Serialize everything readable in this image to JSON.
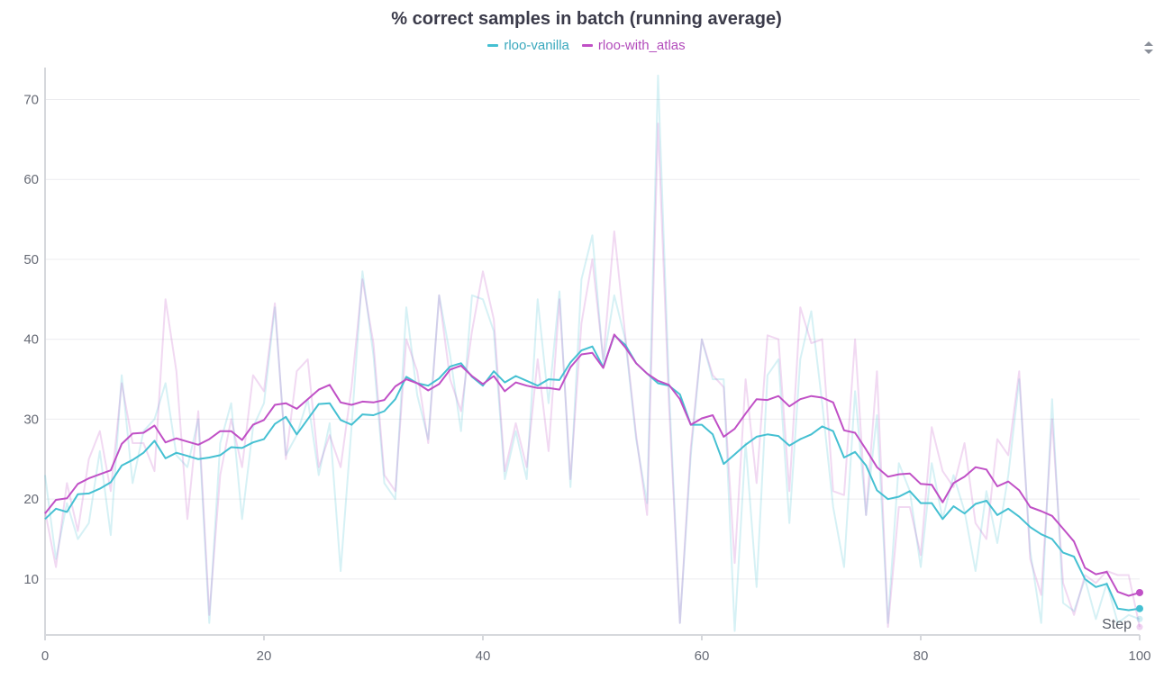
{
  "chart_data": {
    "type": "line",
    "title": "% correct samples in batch (running average)",
    "xlabel": "Step",
    "ylabel": "",
    "xlim": [
      0,
      100
    ],
    "ylim": [
      3,
      74
    ],
    "xticks": [
      0,
      20,
      40,
      60,
      80,
      100
    ],
    "yticks": [
      10,
      20,
      30,
      40,
      50,
      60,
      70
    ],
    "grid": true,
    "legend_position": "top-center",
    "series": [
      {
        "name": "rloo-vanilla",
        "color": "#45c0d2",
        "smoothed": [
          17.5,
          18.8,
          18.4,
          20.6,
          20.7,
          21.3,
          22.1,
          24.2,
          24.9,
          25.8,
          27.3,
          25.1,
          25.8,
          25.4,
          25.0,
          25.2,
          25.5,
          26.5,
          26.4,
          27.1,
          27.5,
          29.4,
          30.3,
          28.1,
          30.0,
          31.9,
          32.0,
          29.9,
          29.3,
          30.6,
          30.5,
          31.0,
          32.5,
          35.3,
          34.5,
          34.2,
          35.1,
          36.6,
          37.0,
          35.3,
          34.2,
          36.0,
          34.6,
          35.4,
          34.8,
          34.2,
          35.0,
          34.9,
          37.1,
          38.6,
          39.1,
          36.5,
          40.5,
          39.3,
          37.0,
          35.7,
          34.5,
          34.2,
          33.1,
          29.3,
          29.3,
          28.1,
          24.4,
          25.6,
          26.8,
          27.8,
          28.1,
          27.9,
          26.7,
          27.5,
          28.1,
          29.1,
          28.5,
          25.2,
          25.9,
          24.2,
          21.1,
          20.0,
          20.3,
          21.0,
          19.5,
          19.5,
          17.5,
          19.1,
          18.2,
          19.4,
          19.8,
          18.0,
          18.8,
          17.8,
          16.5,
          15.6,
          15.0,
          13.3,
          12.8,
          10.0,
          9.0,
          9.4,
          6.3,
          6.1,
          6.3
        ],
        "raw": [
          23.0,
          12.5,
          19.5,
          15.0,
          17.0,
          26.0,
          15.5,
          35.5,
          22.0,
          28.5,
          30.0,
          34.5,
          25.5,
          24.0,
          30.0,
          4.5,
          27.0,
          32.0,
          17.5,
          29.0,
          32.0,
          44.0,
          25.5,
          28.0,
          32.5,
          23.0,
          29.5,
          11.0,
          29.0,
          48.5,
          38.0,
          22.0,
          20.0,
          44.0,
          33.0,
          27.5,
          45.5,
          38.0,
          28.5,
          45.5,
          45.0,
          41.0,
          22.5,
          28.5,
          22.5,
          45.0,
          32.0,
          46.0,
          21.5,
          47.5,
          53.0,
          37.0,
          45.5,
          40.0,
          27.5,
          19.5,
          73.0,
          34.0,
          4.5,
          25.5,
          40.0,
          35.0,
          35.0,
          3.5,
          27.0,
          9.0,
          35.5,
          37.5,
          17.0,
          37.5,
          43.5,
          32.0,
          19.0,
          11.5,
          33.5,
          18.0,
          30.5,
          4.5,
          24.5,
          21.0,
          11.5,
          24.5,
          17.5,
          23.0,
          18.5,
          11.0,
          21.0,
          14.5,
          23.0,
          35.0,
          13.5,
          4.5,
          32.5,
          7.0,
          6.0,
          10.0,
          5.0,
          9.5,
          4.5,
          5.5,
          5.0
        ]
      },
      {
        "name": "rloo-with_atlas",
        "color": "#c050c6",
        "smoothed": [
          18.2,
          19.9,
          20.1,
          21.9,
          22.6,
          23.1,
          23.6,
          26.9,
          28.2,
          28.3,
          29.2,
          27.1,
          27.6,
          27.2,
          26.8,
          27.5,
          28.5,
          28.5,
          27.4,
          29.3,
          29.9,
          31.8,
          32.0,
          31.3,
          32.5,
          33.7,
          34.3,
          32.1,
          31.8,
          32.2,
          32.1,
          32.4,
          34.1,
          35.0,
          34.5,
          33.6,
          34.4,
          36.2,
          36.7,
          35.4,
          34.4,
          35.4,
          33.5,
          34.6,
          34.2,
          33.9,
          33.9,
          33.7,
          36.5,
          38.1,
          38.3,
          36.4,
          40.6,
          39.0,
          37.0,
          35.7,
          34.8,
          34.3,
          32.5,
          29.3,
          30.1,
          30.5,
          27.8,
          28.8,
          30.7,
          32.5,
          32.4,
          32.9,
          31.6,
          32.5,
          32.9,
          32.7,
          32.1,
          28.6,
          28.3,
          26.2,
          24.0,
          22.8,
          23.1,
          23.2,
          21.9,
          21.8,
          19.6,
          22.0,
          22.8,
          24.0,
          23.7,
          21.6,
          22.2,
          21.1,
          19.0,
          18.5,
          17.9,
          16.3,
          14.7,
          11.4,
          10.6,
          10.9,
          8.4,
          7.9,
          8.3
        ],
        "raw": [
          18.5,
          11.5,
          22.0,
          16.0,
          25.0,
          28.5,
          21.0,
          34.5,
          27.0,
          27.0,
          23.5,
          45.0,
          36.0,
          17.5,
          31.0,
          5.5,
          23.0,
          30.0,
          24.0,
          35.5,
          33.5,
          44.5,
          25.0,
          36.0,
          37.5,
          24.0,
          28.0,
          24.0,
          34.0,
          47.5,
          39.5,
          23.0,
          21.0,
          40.0,
          36.0,
          27.0,
          45.5,
          35.0,
          31.0,
          41.0,
          48.5,
          42.5,
          23.5,
          29.5,
          24.0,
          37.5,
          26.0,
          45.0,
          22.5,
          42.0,
          50.0,
          37.5,
          53.5,
          40.5,
          28.0,
          18.0,
          67.0,
          32.0,
          4.5,
          26.5,
          40.0,
          35.5,
          34.0,
          12.0,
          35.0,
          22.0,
          40.5,
          40.0,
          21.0,
          44.0,
          39.5,
          40.0,
          21.0,
          20.5,
          40.0,
          18.0,
          36.0,
          4.0,
          19.0,
          19.0,
          13.0,
          29.0,
          23.5,
          21.5,
          27.0,
          17.0,
          15.0,
          27.5,
          25.5,
          36.0,
          12.5,
          8.0,
          30.0,
          9.5,
          5.5,
          10.5,
          9.5,
          11.0,
          10.5,
          10.5,
          4.0
        ]
      }
    ]
  }
}
